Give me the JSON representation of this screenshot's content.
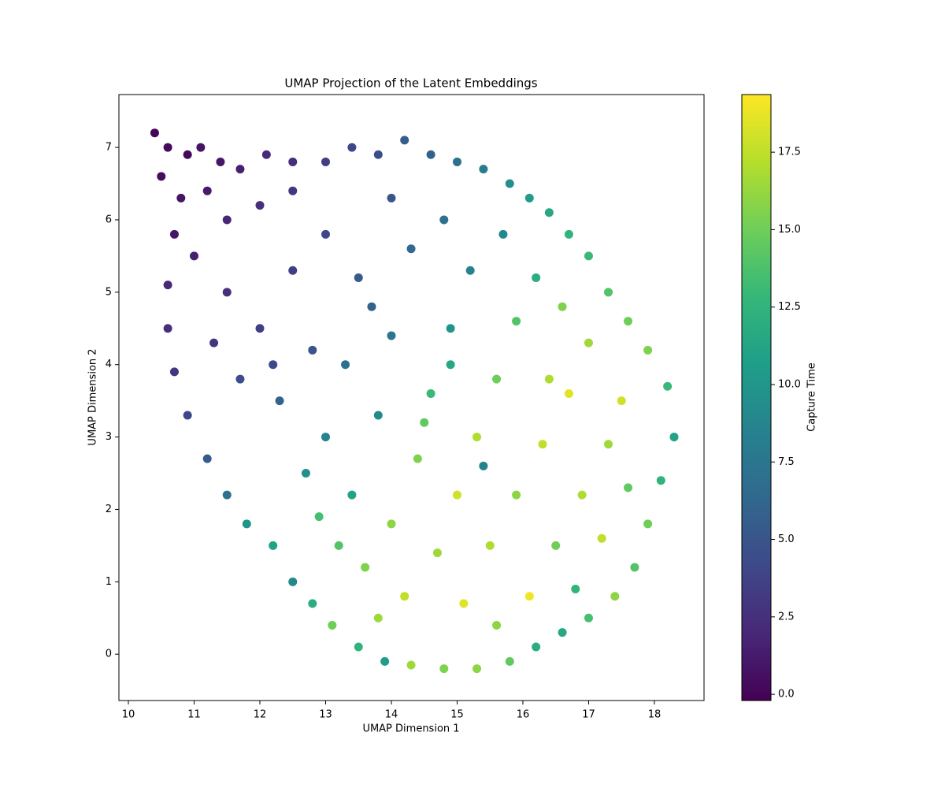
{
  "chart_data": {
    "type": "scatter",
    "title": "UMAP Projection of the Latent Embeddings",
    "xlabel": "UMAP Dimension 1",
    "ylabel": "UMAP Dimension 2",
    "xlim": [
      9.856,
      18.755
    ],
    "xticks": [
      10,
      11,
      12,
      13,
      14,
      15,
      16,
      17,
      18
    ],
    "ylim": [
      -0.64,
      7.73
    ],
    "yticks": [
      0,
      1,
      2,
      3,
      4,
      5,
      6,
      7
    ],
    "x": [
      10.4,
      10.6,
      10.9,
      10.5,
      11.1,
      11.4,
      10.8,
      11.2,
      11.7,
      12.1,
      12.5,
      10.7,
      11.0,
      11.5,
      12.0,
      12.5,
      13.0,
      13.4,
      13.8,
      14.2,
      14.6,
      15.0,
      15.4,
      15.8,
      16.1,
      16.4,
      16.7,
      17.0,
      17.3,
      17.6,
      17.9,
      18.2,
      18.3,
      18.1,
      17.9,
      17.7,
      17.4,
      17.0,
      16.6,
      16.2,
      15.8,
      15.3,
      14.8,
      14.3,
      13.9,
      13.5,
      13.1,
      12.8,
      12.5,
      12.2,
      11.8,
      11.5,
      11.2,
      10.9,
      10.7,
      10.6,
      10.6,
      11.5,
      12.0,
      11.7,
      12.3,
      12.8,
      12.5,
      13.0,
      13.5,
      13.3,
      13.0,
      12.7,
      13.4,
      13.8,
      14.0,
      14.3,
      14.0,
      14.8,
      15.2,
      14.9,
      14.6,
      14.4,
      14.0,
      13.6,
      13.2,
      14.2,
      14.7,
      15.0,
      15.3,
      15.6,
      15.9,
      16.2,
      15.7,
      16.6,
      17.0,
      16.7,
      16.3,
      15.9,
      15.5,
      15.1,
      15.6,
      16.1,
      16.5,
      16.9,
      17.3,
      17.5,
      17.6,
      17.2,
      16.8,
      14.9,
      13.7,
      12.2,
      11.3,
      12.9,
      15.4,
      16.4,
      14.5,
      13.8
    ],
    "values": [
      7.2,
      7.0,
      6.9,
      6.6,
      7.0,
      6.8,
      6.3,
      6.4,
      6.7,
      6.9,
      6.8,
      5.8,
      5.5,
      6.0,
      6.2,
      6.4,
      6.8,
      7.0,
      6.9,
      7.1,
      6.9,
      6.8,
      6.7,
      6.5,
      6.3,
      6.1,
      5.8,
      5.5,
      5.0,
      4.6,
      4.2,
      3.7,
      3.0,
      2.4,
      1.8,
      1.2,
      0.8,
      0.5,
      0.3,
      0.1,
      -0.1,
      -0.2,
      -0.2,
      -0.15,
      -0.1,
      0.1,
      0.4,
      0.7,
      1.0,
      1.5,
      1.8,
      2.2,
      2.7,
      3.3,
      3.9,
      4.5,
      5.1,
      5.0,
      4.5,
      3.8,
      3.5,
      4.2,
      5.3,
      5.8,
      5.2,
      4.0,
      3.0,
      2.5,
      2.2,
      3.3,
      4.4,
      5.6,
      6.3,
      6.0,
      5.3,
      4.5,
      3.6,
      2.7,
      1.8,
      1.2,
      1.5,
      0.8,
      1.4,
      2.2,
      3.0,
      3.8,
      4.6,
      5.2,
      5.8,
      4.8,
      4.3,
      3.6,
      2.9,
      2.2,
      1.5,
      0.7,
      0.4,
      0.8,
      1.5,
      2.2,
      2.9,
      3.5,
      2.3,
      1.6,
      0.9,
      4.0,
      4.8,
      4.0,
      4.3,
      1.9,
      2.6,
      3.8,
      3.2,
      0.5
    ],
    "color_values": [
      0.1,
      0.3,
      0.2,
      0.5,
      0.8,
      1.0,
      0.9,
      1.2,
      1.5,
      2.0,
      2.4,
      1.0,
      1.5,
      1.8,
      2.5,
      3.0,
      3.5,
      4.0,
      4.5,
      5.5,
      6.0,
      7.0,
      8.0,
      9.5,
      10.5,
      11.5,
      12.5,
      13.0,
      14.0,
      15.0,
      15.5,
      13.0,
      11.0,
      12.5,
      15.0,
      14.0,
      16.0,
      13.5,
      11.5,
      12.0,
      14.5,
      16.0,
      15.5,
      16.5,
      10.5,
      12.5,
      15.0,
      12.0,
      9.0,
      11.0,
      10.0,
      7.0,
      5.5,
      4.0,
      3.0,
      2.5,
      2.0,
      2.5,
      3.5,
      4.5,
      6.0,
      5.0,
      3.5,
      4.0,
      5.5,
      7.0,
      8.5,
      9.5,
      11.0,
      9.0,
      7.5,
      6.5,
      5.0,
      7.0,
      8.5,
      10.0,
      13.0,
      15.5,
      16.0,
      15.5,
      14.0,
      17.5,
      16.5,
      18.0,
      17.0,
      15.0,
      14.0,
      12.0,
      9.0,
      15.5,
      16.5,
      18.5,
      17.5,
      16.0,
      17.0,
      18.5,
      16.0,
      19.0,
      15.0,
      17.0,
      16.5,
      18.0,
      14.5,
      17.5,
      12.5,
      11.5,
      6.0,
      4.0,
      2.8,
      13.5,
      8.5,
      17.0,
      14.5,
      16.5
    ],
    "colorbar": {
      "label": "Capture Time",
      "colormap": "viridis",
      "lim": [
        -0.2,
        19.36
      ],
      "ticks": [
        {
          "value": 0,
          "label": "0.0"
        },
        {
          "value": 2.5,
          "label": "2.5"
        },
        {
          "value": 5,
          "label": "5.0"
        },
        {
          "value": 7.5,
          "label": "7.5"
        },
        {
          "value": 10,
          "label": "10.0"
        },
        {
          "value": 12.5,
          "label": "12.5"
        },
        {
          "value": 15,
          "label": "15.0"
        },
        {
          "value": 17.5,
          "label": "17.5"
        }
      ]
    }
  }
}
